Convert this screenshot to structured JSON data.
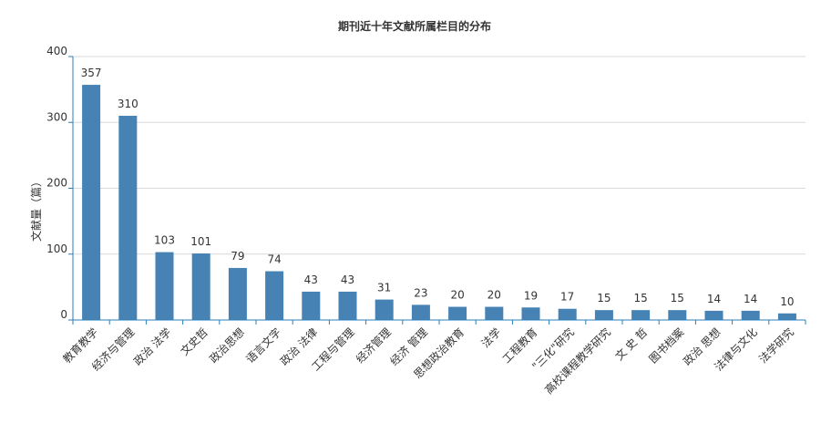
{
  "chart_data": {
    "type": "bar",
    "title": "期刊近十年文献所属栏目的分布",
    "xlabel": "",
    "ylabel": "文献量（篇）",
    "ylim": [
      0,
      400
    ],
    "yticks": [
      0,
      100,
      200,
      300,
      400
    ],
    "grid": true,
    "categories": [
      "教育教学",
      "经济与管理",
      "政治 法学",
      "文史哲",
      "政治思想",
      "语言文字",
      "政治 法律",
      "工程与管理",
      "经济管理",
      "经济 管理",
      "思想政治教育",
      "法学",
      "工程教育",
      "\"三化\"研究",
      "高校课程教学研究",
      "文 史 哲",
      "图书档案",
      "政治 思想",
      "法律与文化",
      "法学研究"
    ],
    "values": [
      357,
      310,
      103,
      101,
      79,
      74,
      43,
      43,
      31,
      23,
      20,
      20,
      19,
      17,
      15,
      15,
      15,
      14,
      14,
      10
    ],
    "bar_color": "#4682b4"
  }
}
